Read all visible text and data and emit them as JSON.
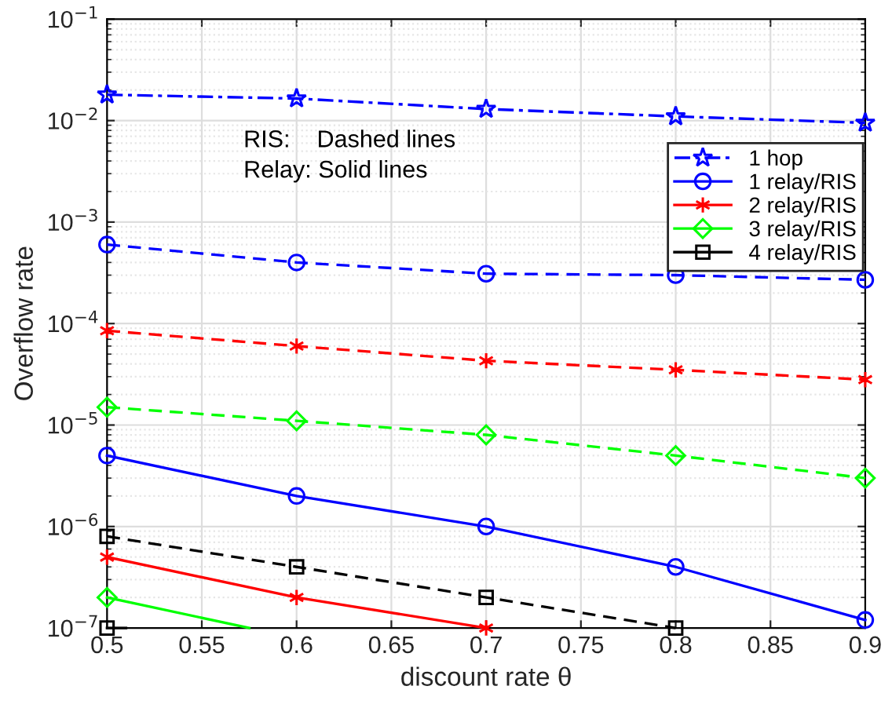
{
  "chart_data": {
    "type": "line",
    "xlabel": "discount rate θ",
    "ylabel": "Overflow rate",
    "x": [
      0.5,
      0.6,
      0.7,
      0.8,
      0.9
    ],
    "series": [
      {
        "name": "1 hop",
        "color": "#0000ff",
        "marker": "star",
        "line_style": "dashdot",
        "values": [
          0.018,
          0.0165,
          0.013,
          0.011,
          0.0095
        ]
      },
      {
        "name": "1 relay/RIS",
        "color": "#0000ff",
        "marker": "circle",
        "line_style": "solid",
        "values": [
          5e-06,
          2e-06,
          1e-06,
          4e-07,
          1.2e-07
        ]
      },
      {
        "name": "2 relay/RIS",
        "color": "#ff0000",
        "marker": "cross",
        "line_style": "solid",
        "values": [
          5e-07,
          2e-07,
          1e-07,
          null,
          null
        ]
      },
      {
        "name": "3 relay/RIS",
        "color": "#00ff00",
        "marker": "diamond",
        "line_style": "solid",
        "x": [
          0.5,
          0.575
        ],
        "values": [
          2e-07,
          1e-07
        ]
      },
      {
        "name": "4 relay/RIS",
        "color": "#000000",
        "marker": "square",
        "line_style": "solid",
        "x": [
          0.5,
          0.51
        ],
        "values": [
          1e-07,
          1e-07
        ]
      },
      {
        "color": "#0000ff",
        "marker": "circle",
        "line_style": "dashed",
        "values": [
          0.0006,
          0.0004,
          0.00031,
          0.0003,
          0.00027
        ]
      },
      {
        "color": "#ff0000",
        "marker": "cross",
        "line_style": "dashed",
        "values": [
          8.5e-05,
          6e-05,
          4.3e-05,
          3.5e-05,
          2.8e-05
        ]
      },
      {
        "color": "#00ff00",
        "marker": "diamond",
        "line_style": "dashed",
        "values": [
          1.5e-05,
          1.1e-05,
          8e-06,
          5e-06,
          3e-06
        ]
      },
      {
        "color": "#000000",
        "marker": "square",
        "line_style": "dashed",
        "values": [
          8e-07,
          4e-07,
          2e-07,
          1e-07,
          null
        ]
      }
    ],
    "annotations": [
      "RIS:    Dashed lines",
      "Relay: Solid lines"
    ],
    "log": "y",
    "grid": true,
    "legend": "right",
    "xlim": [
      0.5,
      0.9
    ],
    "xticks": [
      0.5,
      0.55,
      0.6,
      0.65,
      0.7,
      0.75,
      0.8,
      0.85,
      0.9
    ],
    "ylim": [
      1e-07,
      0.1
    ],
    "yticks": [
      {
        "value": 1e-07,
        "label": "10$^{−7}$"
      },
      {
        "value": 1e-06,
        "label": "10$^{−6}$"
      },
      {
        "value": 1e-05,
        "label": "10$^{−5}$"
      },
      {
        "value": 0.0001,
        "label": "10$^{−4}$"
      },
      {
        "value": 0.001,
        "label": "10$^{−3}$"
      },
      {
        "value": 0.01,
        "label": "10$^{−2}$"
      },
      {
        "value": 0.1,
        "label": "10$^{−1}$"
      }
    ]
  }
}
